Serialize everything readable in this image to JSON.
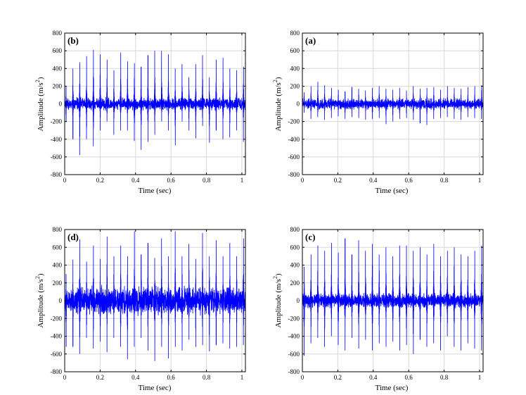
{
  "colors": {
    "signal": "#0000ff",
    "grid": "#d8d8d8",
    "axis": "#000000"
  },
  "chart_data": [
    {
      "type": "line",
      "panel_label": "(b)",
      "xlabel": "Time (sec)",
      "ylabel": "Amplitude (m/s",
      "ylabel_sup": "2",
      "ylabel_end": ")",
      "xlim": [
        0,
        1.02
      ],
      "ylim": [
        -800,
        800
      ],
      "xticks": [
        "0",
        "0.2",
        "0.4",
        "0.6",
        "0.8",
        "1"
      ],
      "yticks": [
        "800",
        "600",
        "400",
        "200",
        "0",
        "-200",
        "-400",
        "-600",
        "-800"
      ],
      "grid": true,
      "series": [
        {
          "noise_amplitude": 80,
          "impulse_period": 0.0385,
          "impulse_start": 0.008,
          "peaks_pos": [
            200,
            400,
            470,
            540,
            610,
            560,
            500,
            380,
            580,
            480,
            460,
            420,
            550,
            600,
            600,
            560,
            400,
            450,
            300,
            450,
            550,
            300,
            500,
            520,
            400,
            380,
            420
          ],
          "peaks_neg": [
            -200,
            -400,
            -580,
            -400,
            -480,
            -300,
            -200,
            -350,
            -300,
            -300,
            -420,
            -520,
            -430,
            -350,
            -200,
            -300,
            -470,
            -200,
            -300,
            -390,
            -250,
            -440,
            -300,
            -400,
            -380,
            -300,
            -430
          ]
        }
      ]
    },
    {
      "type": "line",
      "panel_label": "(a)",
      "xlabel": "Time (sec)",
      "ylabel": "Amplitude (m/s",
      "ylabel_sup": "2",
      "ylabel_end": ")",
      "xlim": [
        0,
        1.02
      ],
      "ylim": [
        -800,
        800
      ],
      "xticks": [
        "0",
        "0.2",
        "0.4",
        "0.6",
        "0.8",
        "1"
      ],
      "yticks": [
        "800",
        "600",
        "400",
        "200",
        "0",
        "-200",
        "-400",
        "-600",
        "-800"
      ],
      "grid": true,
      "series": [
        {
          "noise_amplitude": 70,
          "impulse_period": 0.0385,
          "impulse_start": 0.01,
          "peaks_pos": [
            130,
            200,
            250,
            210,
            180,
            160,
            140,
            190,
            170,
            150,
            180,
            200,
            170,
            160,
            180,
            150,
            200,
            170,
            180,
            190,
            160,
            200,
            180,
            170,
            190,
            200,
            210
          ],
          "peaks_neg": [
            -100,
            -170,
            -150,
            -180,
            -160,
            -140,
            -170,
            -150,
            -160,
            -180,
            -170,
            -160,
            -230,
            -200,
            -170,
            -160,
            -180,
            -220,
            -240,
            -170,
            -160,
            -150,
            -170,
            -180,
            -150,
            -160,
            -170
          ]
        }
      ]
    },
    {
      "type": "line",
      "panel_label": "(d)",
      "xlabel": "Time (sec)",
      "ylabel": "Amplitude (m/s",
      "ylabel_sup": "2",
      "ylabel_end": ")",
      "xlim": [
        0,
        1.02
      ],
      "ylim": [
        -800,
        800
      ],
      "xticks": [
        "0",
        "0.2",
        "0.4",
        "0.6",
        "0.8",
        "1"
      ],
      "yticks": [
        "800",
        "600",
        "400",
        "200",
        "0",
        "-200",
        "-400",
        "-600",
        "-800"
      ],
      "grid": true,
      "series": [
        {
          "noise_amplitude": 180,
          "impulse_period": 0.0385,
          "impulse_start": 0.008,
          "peaks_pos": [
            300,
            460,
            690,
            440,
            620,
            470,
            720,
            500,
            620,
            500,
            780,
            520,
            650,
            480,
            700,
            500,
            780,
            500,
            640,
            470,
            760,
            500,
            680,
            500,
            650,
            500,
            700
          ],
          "peaks_neg": [
            -520,
            -520,
            -600,
            -420,
            -540,
            -460,
            -580,
            -420,
            -520,
            -660,
            -520,
            -420,
            -560,
            -680,
            -520,
            -650,
            -520,
            -560,
            -440,
            -520,
            -500,
            -570,
            -500,
            -480,
            -540,
            -520,
            -500
          ]
        }
      ]
    },
    {
      "type": "line",
      "panel_label": "(c)",
      "xlabel": "Time (sec)",
      "ylabel": "Amplitude (m/s",
      "ylabel_sup": "2",
      "ylabel_end": ")",
      "xlim": [
        0,
        1.02
      ],
      "ylim": [
        -800,
        800
      ],
      "xticks": [
        "0",
        "0.2",
        "0.4",
        "0.6",
        "0.8",
        "1"
      ],
      "yticks": [
        "800",
        "600",
        "400",
        "200",
        "0",
        "-200",
        "-400",
        "-600",
        "-800"
      ],
      "grid": true,
      "series": [
        {
          "noise_amplitude": 90,
          "impulse_period": 0.0385,
          "impulse_start": 0.01,
          "peaks_pos": [
            380,
            520,
            620,
            560,
            650,
            540,
            700,
            520,
            680,
            560,
            640,
            520,
            600,
            500,
            620,
            620,
            560,
            600,
            520,
            640,
            500,
            560,
            600,
            520,
            500,
            560,
            620
          ],
          "peaks_neg": [
            -620,
            -480,
            -420,
            -520,
            -400,
            -500,
            -560,
            -420,
            -540,
            -440,
            -560,
            -480,
            -520,
            -460,
            -560,
            -500,
            -600,
            -440,
            -520,
            -480,
            -560,
            -400,
            -520,
            -560,
            -480,
            -540,
            -560
          ]
        }
      ]
    }
  ]
}
